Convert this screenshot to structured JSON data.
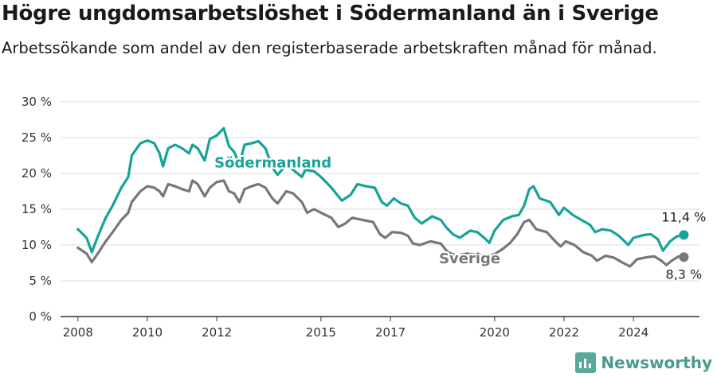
{
  "title": "Högre ungdomsarbetslöshet i Södermanland än i Sverige",
  "subtitle": "Arbetssökande som andel av den registerbaserade arbetskraften månad för månad.",
  "brand": {
    "name": "Newsworthy",
    "icon": "bar-chart-icon"
  },
  "colors": {
    "sodermanland": "#16a398",
    "sverige": "#77777b",
    "grid": "#dddddd",
    "axis": "#333333"
  },
  "chart_data": {
    "type": "line",
    "title": "Högre ungdomsarbetslöshet i Södermanland än i Sverige",
    "subtitle": "Arbetssökande som andel av den registerbaserade arbetskraften månad för månad.",
    "x_ticks": [
      2008,
      2010,
      2012,
      2015,
      2017,
      2020,
      2022,
      2024
    ],
    "x_range": [
      2007.5,
      2025.9
    ],
    "y_ticks": [
      "0 %",
      "5 %",
      "10 %",
      "15 %",
      "20 %",
      "25 %",
      "30 %"
    ],
    "y_range": [
      0,
      30
    ],
    "grid": true,
    "series": [
      {
        "name": "Södermanland",
        "color": "#16a398",
        "label": "Södermanland",
        "end_label": "11,4 %",
        "points": [
          [
            2008.0,
            12.2
          ],
          [
            2008.25,
            11.0
          ],
          [
            2008.4,
            9.0
          ],
          [
            2008.6,
            11.5
          ],
          [
            2008.8,
            13.8
          ],
          [
            2009.0,
            15.5
          ],
          [
            2009.25,
            18.0
          ],
          [
            2009.45,
            19.5
          ],
          [
            2009.55,
            22.5
          ],
          [
            2009.8,
            24.2
          ],
          [
            2010.0,
            24.6
          ],
          [
            2010.2,
            24.2
          ],
          [
            2010.35,
            22.8
          ],
          [
            2010.45,
            21.0
          ],
          [
            2010.6,
            23.5
          ],
          [
            2010.8,
            24.0
          ],
          [
            2011.0,
            23.5
          ],
          [
            2011.2,
            22.8
          ],
          [
            2011.3,
            24.0
          ],
          [
            2011.45,
            23.5
          ],
          [
            2011.65,
            21.8
          ],
          [
            2011.8,
            24.8
          ],
          [
            2012.0,
            25.3
          ],
          [
            2012.2,
            26.3
          ],
          [
            2012.35,
            23.8
          ],
          [
            2012.5,
            23.0
          ],
          [
            2012.65,
            21.3
          ],
          [
            2012.8,
            24.0
          ],
          [
            2013.0,
            24.2
          ],
          [
            2013.2,
            24.5
          ],
          [
            2013.4,
            23.5
          ],
          [
            2013.6,
            20.8
          ],
          [
            2013.75,
            19.8
          ],
          [
            2014.0,
            21.2
          ],
          [
            2014.2,
            20.5
          ],
          [
            2014.45,
            19.5
          ],
          [
            2014.55,
            20.5
          ],
          [
            2014.8,
            20.3
          ],
          [
            2015.0,
            19.5
          ],
          [
            2015.3,
            18.0
          ],
          [
            2015.6,
            16.2
          ],
          [
            2015.85,
            17.0
          ],
          [
            2016.05,
            18.5
          ],
          [
            2016.3,
            18.2
          ],
          [
            2016.55,
            18.0
          ],
          [
            2016.75,
            16.0
          ],
          [
            2016.9,
            15.5
          ],
          [
            2017.1,
            16.5
          ],
          [
            2017.3,
            15.8
          ],
          [
            2017.5,
            15.5
          ],
          [
            2017.7,
            13.8
          ],
          [
            2017.9,
            13.0
          ],
          [
            2018.2,
            14.0
          ],
          [
            2018.45,
            13.5
          ],
          [
            2018.6,
            12.5
          ],
          [
            2018.8,
            11.5
          ],
          [
            2019.0,
            11.0
          ],
          [
            2019.3,
            12.0
          ],
          [
            2019.5,
            11.8
          ],
          [
            2019.7,
            11.0
          ],
          [
            2019.85,
            10.3
          ],
          [
            2020.0,
            12.0
          ],
          [
            2020.25,
            13.5
          ],
          [
            2020.5,
            14.0
          ],
          [
            2020.7,
            14.2
          ],
          [
            2020.85,
            15.5
          ],
          [
            2021.0,
            17.8
          ],
          [
            2021.12,
            18.2
          ],
          [
            2021.3,
            16.5
          ],
          [
            2021.6,
            16.0
          ],
          [
            2021.85,
            14.2
          ],
          [
            2022.0,
            15.2
          ],
          [
            2022.25,
            14.2
          ],
          [
            2022.5,
            13.5
          ],
          [
            2022.75,
            12.8
          ],
          [
            2022.9,
            11.8
          ],
          [
            2023.1,
            12.2
          ],
          [
            2023.35,
            12.0
          ],
          [
            2023.6,
            11.2
          ],
          [
            2023.85,
            10.0
          ],
          [
            2024.0,
            11.0
          ],
          [
            2024.3,
            11.4
          ],
          [
            2024.5,
            11.5
          ],
          [
            2024.7,
            10.8
          ],
          [
            2024.85,
            9.2
          ],
          [
            2025.05,
            10.5
          ],
          [
            2025.25,
            11.2
          ],
          [
            2025.45,
            11.4
          ]
        ]
      },
      {
        "name": "Sverige",
        "color": "#77777b",
        "label": "Sverige",
        "end_label": "8,3 %",
        "points": [
          [
            2008.0,
            9.6
          ],
          [
            2008.25,
            8.8
          ],
          [
            2008.4,
            7.6
          ],
          [
            2008.6,
            9.0
          ],
          [
            2008.8,
            10.5
          ],
          [
            2009.0,
            11.8
          ],
          [
            2009.25,
            13.5
          ],
          [
            2009.45,
            14.5
          ],
          [
            2009.55,
            16.0
          ],
          [
            2009.8,
            17.5
          ],
          [
            2010.0,
            18.2
          ],
          [
            2010.2,
            18.0
          ],
          [
            2010.35,
            17.5
          ],
          [
            2010.45,
            16.8
          ],
          [
            2010.6,
            18.5
          ],
          [
            2010.8,
            18.2
          ],
          [
            2011.0,
            17.8
          ],
          [
            2011.2,
            17.5
          ],
          [
            2011.3,
            19.0
          ],
          [
            2011.45,
            18.5
          ],
          [
            2011.65,
            16.8
          ],
          [
            2011.8,
            18.0
          ],
          [
            2012.0,
            18.8
          ],
          [
            2012.2,
            19.0
          ],
          [
            2012.35,
            17.5
          ],
          [
            2012.5,
            17.2
          ],
          [
            2012.65,
            16.0
          ],
          [
            2012.8,
            17.8
          ],
          [
            2013.0,
            18.2
          ],
          [
            2013.2,
            18.5
          ],
          [
            2013.4,
            18.0
          ],
          [
            2013.6,
            16.5
          ],
          [
            2013.75,
            15.8
          ],
          [
            2014.0,
            17.5
          ],
          [
            2014.2,
            17.2
          ],
          [
            2014.45,
            16.0
          ],
          [
            2014.6,
            14.5
          ],
          [
            2014.8,
            15.0
          ],
          [
            2015.0,
            14.5
          ],
          [
            2015.3,
            13.8
          ],
          [
            2015.5,
            12.5
          ],
          [
            2015.7,
            13.0
          ],
          [
            2015.9,
            13.8
          ],
          [
            2016.2,
            13.5
          ],
          [
            2016.5,
            13.2
          ],
          [
            2016.7,
            11.5
          ],
          [
            2016.85,
            11.0
          ],
          [
            2017.05,
            11.8
          ],
          [
            2017.3,
            11.7
          ],
          [
            2017.5,
            11.3
          ],
          [
            2017.65,
            10.2
          ],
          [
            2017.85,
            10.0
          ],
          [
            2018.15,
            10.5
          ],
          [
            2018.45,
            10.2
          ],
          [
            2018.65,
            9.0
          ],
          [
            2018.9,
            8.5
          ],
          [
            2019.2,
            8.8
          ],
          [
            2019.5,
            8.6
          ],
          [
            2019.8,
            8.5
          ],
          [
            2020.0,
            8.7
          ],
          [
            2020.25,
            9.5
          ],
          [
            2020.45,
            10.3
          ],
          [
            2020.65,
            11.5
          ],
          [
            2020.85,
            13.2
          ],
          [
            2021.0,
            13.5
          ],
          [
            2021.2,
            12.2
          ],
          [
            2021.5,
            11.8
          ],
          [
            2021.75,
            10.5
          ],
          [
            2021.9,
            9.8
          ],
          [
            2022.05,
            10.5
          ],
          [
            2022.3,
            10.0
          ],
          [
            2022.55,
            9.0
          ],
          [
            2022.8,
            8.5
          ],
          [
            2022.95,
            7.8
          ],
          [
            2023.2,
            8.5
          ],
          [
            2023.45,
            8.2
          ],
          [
            2023.7,
            7.5
          ],
          [
            2023.9,
            7.0
          ],
          [
            2024.1,
            8.0
          ],
          [
            2024.4,
            8.3
          ],
          [
            2024.6,
            8.4
          ],
          [
            2024.8,
            7.8
          ],
          [
            2024.95,
            7.2
          ],
          [
            2025.1,
            7.8
          ],
          [
            2025.3,
            8.4
          ],
          [
            2025.45,
            8.3
          ]
        ]
      }
    ]
  }
}
